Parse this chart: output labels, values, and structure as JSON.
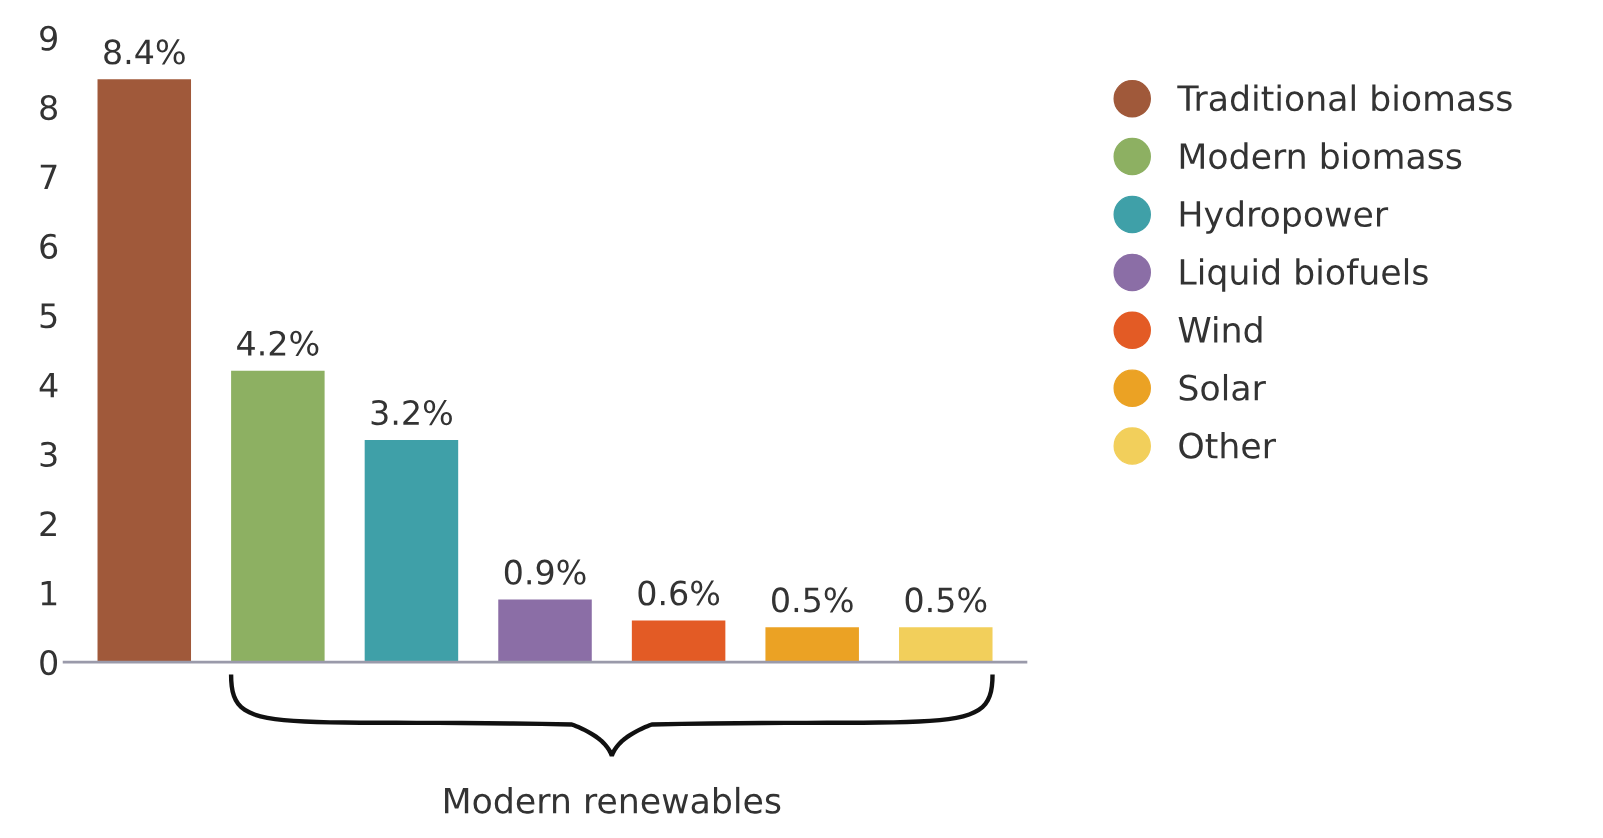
{
  "chart_data": {
    "type": "bar",
    "categories": [
      null,
      null,
      null,
      null,
      null,
      null,
      null
    ],
    "series": [
      {
        "name": "Traditional biomass",
        "color": "#a0593a",
        "values": [
          8.4,
          null,
          null,
          null,
          null,
          null,
          null
        ]
      },
      {
        "name": "Modern biomass",
        "color": "#8db062",
        "values": [
          null,
          4.2,
          null,
          null,
          null,
          null,
          null
        ]
      },
      {
        "name": "Hydropower",
        "color": "#3fa0a8",
        "values": [
          null,
          null,
          3.2,
          null,
          null,
          null,
          null
        ]
      },
      {
        "name": "Liquid biofuels",
        "color": "#8b6ea6",
        "values": [
          null,
          null,
          null,
          0.9,
          null,
          null,
          null
        ]
      },
      {
        "name": "Wind",
        "color": "#e35b25",
        "values": [
          null,
          null,
          null,
          null,
          0.6,
          null,
          null
        ]
      },
      {
        "name": "Solar",
        "color": "#eba224",
        "values": [
          null,
          null,
          null,
          null,
          null,
          0.5,
          null
        ]
      },
      {
        "name": "Other",
        "color": "#f2cf5b",
        "values": [
          null,
          null,
          null,
          null,
          null,
          null,
          0.5
        ]
      }
    ],
    "value_labels": [
      "8.4%",
      "4.2%",
      "3.2%",
      "0.9%",
      "0.6%",
      "0.5%",
      "0.5%"
    ],
    "ylim": [
      0,
      9
    ],
    "yticks": [
      0,
      1,
      2,
      3,
      4,
      5,
      6,
      7,
      8,
      9
    ],
    "tick_labels": "y",
    "legend": "right",
    "marker": "circle",
    "grid": false,
    "annotations": [
      "Modern renewables"
    ]
  }
}
